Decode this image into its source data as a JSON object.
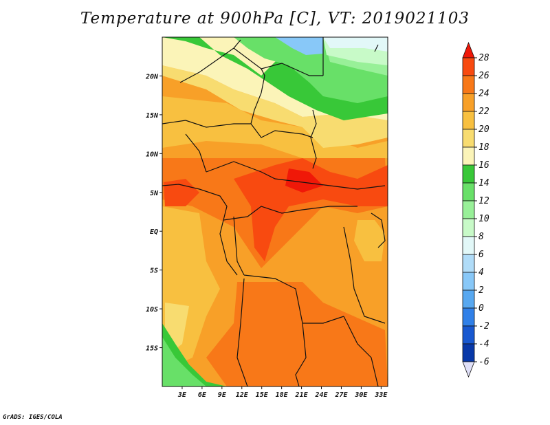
{
  "title": "Temperature at 900hPa [C], VT: 2019021103",
  "credit": "GrADS: IGES/COLA",
  "map": {
    "lon_range": [
      0,
      34
    ],
    "lat_range": [
      -20,
      25
    ],
    "lon_ticks": [
      {
        "value": 3,
        "label": "3E"
      },
      {
        "value": 6,
        "label": "6E"
      },
      {
        "value": 9,
        "label": "9E"
      },
      {
        "value": 12,
        "label": "12E"
      },
      {
        "value": 15,
        "label": "15E"
      },
      {
        "value": 18,
        "label": "18E"
      },
      {
        "value": 21,
        "label": "21E"
      },
      {
        "value": 24,
        "label": "24E"
      },
      {
        "value": 27,
        "label": "27E"
      },
      {
        "value": 30,
        "label": "30E"
      },
      {
        "value": 33,
        "label": "33E"
      }
    ],
    "lat_ticks": [
      {
        "value": 20,
        "label": "20N"
      },
      {
        "value": 15,
        "label": "15N"
      },
      {
        "value": 10,
        "label": "10N"
      },
      {
        "value": 5,
        "label": "5N"
      },
      {
        "value": 0,
        "label": "EQ"
      },
      {
        "value": -5,
        "label": "5S"
      },
      {
        "value": -10,
        "label": "10S"
      },
      {
        "value": -15,
        "label": "15S"
      }
    ]
  },
  "colorbar": {
    "levels": [
      "28",
      "26",
      "24",
      "22",
      "20",
      "18",
      "16",
      "14",
      "12",
      "10",
      "8",
      "6",
      "4",
      "2",
      "0",
      "-2",
      "-4",
      "-6"
    ],
    "colors": [
      "#f01808",
      "#f84a10",
      "#f87818",
      "#f8a028",
      "#f8c040",
      "#f8dc70",
      "#fbf4b8",
      "#38c838",
      "#68e068",
      "#98f098",
      "#c8fac8",
      "#e2f8f8",
      "#b0dcf8",
      "#88c8f8",
      "#58a8f0",
      "#3080e8",
      "#1858d0",
      "#0838a8",
      "#081a70",
      "#e0e0f8"
    ]
  }
}
